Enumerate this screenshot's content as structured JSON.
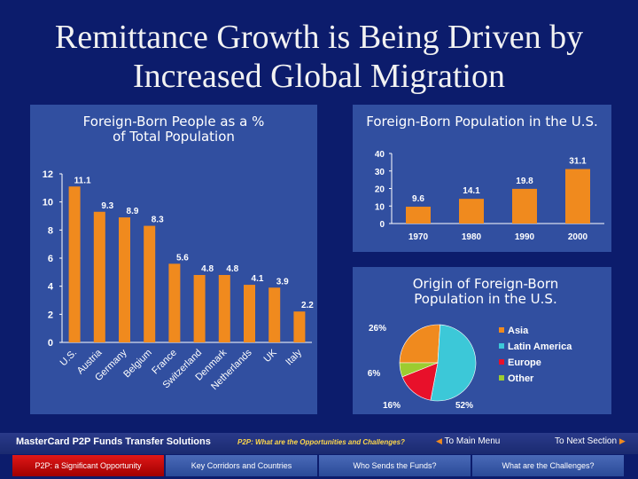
{
  "slide": {
    "title_line1": "Remittance Growth is Being Driven by",
    "title_line2": "Increased Global Migration"
  },
  "colors": {
    "background": "#0c1c6c",
    "panel": "#314fa0",
    "bar": "#f08a1e",
    "text": "#ffffff",
    "asia": "#f08a1e",
    "latin_america": "#3cc8d8",
    "europe": "#e8102a",
    "other": "#9ccc30"
  },
  "chart_data": [
    {
      "type": "bar",
      "title": "Foreign-Born People as a % of Total Population",
      "title_line1": "Foreign-Born People as a %",
      "title_line2": "of Total Population",
      "categories": [
        "U.S.",
        "Austria",
        "Germany",
        "Belgium",
        "France",
        "Switzerland",
        "Denmark",
        "Netherlands",
        "UK",
        "Italy"
      ],
      "values": [
        11.1,
        9.3,
        8.9,
        8.3,
        5.6,
        4.8,
        4.8,
        4.1,
        3.9,
        2.2
      ],
      "value_labels": [
        "11.1",
        "9.3",
        "8.9",
        "8.3",
        "5.6",
        "4.8",
        "4.8",
        "4.1",
        "3.9",
        "2.2"
      ],
      "yticks": [
        "0",
        "2",
        "4",
        "6",
        "8",
        "10",
        "12"
      ],
      "ylim": [
        0,
        12
      ],
      "grid": false
    },
    {
      "type": "bar",
      "title": "Foreign-Born Population in the U.S.",
      "categories": [
        "1970",
        "1980",
        "1990",
        "2000"
      ],
      "values": [
        9.6,
        14.1,
        19.8,
        31.1
      ],
      "value_labels": [
        "9.6",
        "14.1",
        "19.8",
        "31.1"
      ],
      "yticks": [
        "0",
        "10",
        "20",
        "30",
        "40"
      ],
      "ylim": [
        0,
        40
      ],
      "grid": false
    },
    {
      "type": "pie",
      "title": "Origin of Foreign-Born Population in the U.S.",
      "title_line1": "Origin of Foreign-Born",
      "title_line2": "Population in the U.S.",
      "labels": [
        "Asia",
        "Latin America",
        "Europe",
        "Other"
      ],
      "values": [
        26,
        52,
        16,
        6
      ],
      "value_labels": [
        "26%",
        "52%",
        "16%",
        "6%"
      ],
      "legend": "right"
    }
  ],
  "footer": {
    "brand": "MasterCard P2P Funds Transfer Solutions",
    "subtitle": "P2P: What are the Opportunities and Challenges?",
    "nav_main": "To Main Menu",
    "nav_next": "To Next Section",
    "tabs": [
      "P2P: a Significant Opportunity",
      "Key Corridors and Countries",
      "Who Sends the Funds?",
      "What are the Challenges?"
    ]
  }
}
